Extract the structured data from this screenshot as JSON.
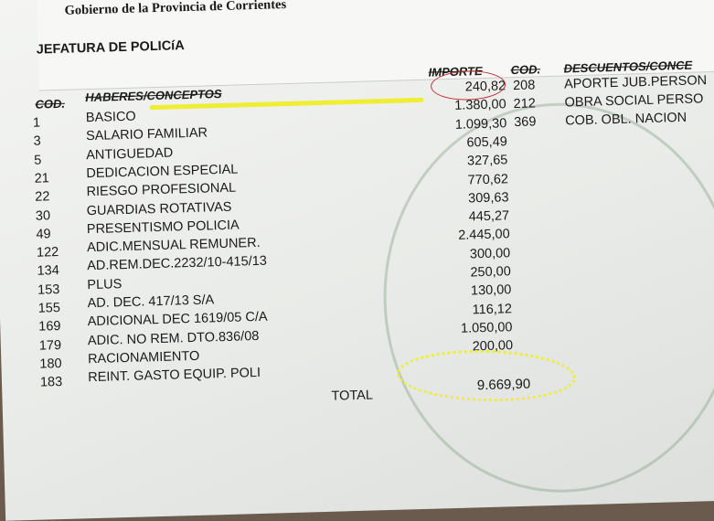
{
  "header": {
    "government": "Gobierno de la Provincia de Corrientes",
    "office": "JEFATURA DE POLICíA"
  },
  "columns": {
    "cod": "COD.",
    "haberes": "HABERES/CONCEPTOS",
    "importe": "IMPORTE",
    "cod2": "COD.",
    "descuentos": "DESCUENTOS/CONCE"
  },
  "haberes": [
    {
      "cod": "1",
      "concepto": "BASICO",
      "importe": "240,82"
    },
    {
      "cod": "3",
      "concepto": "SALARIO FAMILIAR",
      "importe": "1.380,00"
    },
    {
      "cod": "5",
      "concepto": "ANTIGUEDAD",
      "importe": "1.099,30"
    },
    {
      "cod": "21",
      "concepto": "DEDICACION ESPECIAL",
      "importe": "605,49"
    },
    {
      "cod": "22",
      "concepto": "RIESGO PROFESIONAL",
      "importe": "327,65"
    },
    {
      "cod": "30",
      "concepto": "GUARDIAS ROTATIVAS",
      "importe": "770,62"
    },
    {
      "cod": "49",
      "concepto": "PRESENTISMO POLICIA",
      "importe": "309,63"
    },
    {
      "cod": "122",
      "concepto": "ADIC.MENSUAL REMUNER.",
      "importe": "445,27"
    },
    {
      "cod": "134",
      "concepto": "AD.REM.DEC.2232/10-415/13",
      "importe": "2.445,00"
    },
    {
      "cod": "153",
      "concepto": "PLUS",
      "importe": "300,00"
    },
    {
      "cod": "155",
      "concepto": "AD. DEC. 417/13 S/A",
      "importe": "250,00"
    },
    {
      "cod": "169",
      "concepto": "ADICIONAL DEC 1619/05 C/A",
      "importe": "130,00"
    },
    {
      "cod": "179",
      "concepto": "ADIC. NO REM. DTO.836/08",
      "importe": "116,12"
    },
    {
      "cod": "180",
      "concepto": "RACIONAMIENTO",
      "importe": "1.050,00"
    },
    {
      "cod": "183",
      "concepto": "REINT. GASTO EQUIP. POLI",
      "importe": "200,00"
    }
  ],
  "descuentos": [
    {
      "cod": "208",
      "concepto": "APORTE JUB.PERSON"
    },
    {
      "cod": "212",
      "concepto": "OBRA SOCIAL PERSO"
    },
    {
      "cod": "369",
      "concepto": "COB. OBL. NACION"
    }
  ],
  "total": {
    "label": "TOTAL",
    "value": "9.669,90"
  },
  "annotation_colors": {
    "circle": "#c03030",
    "highlight": "#f0ee30"
  }
}
